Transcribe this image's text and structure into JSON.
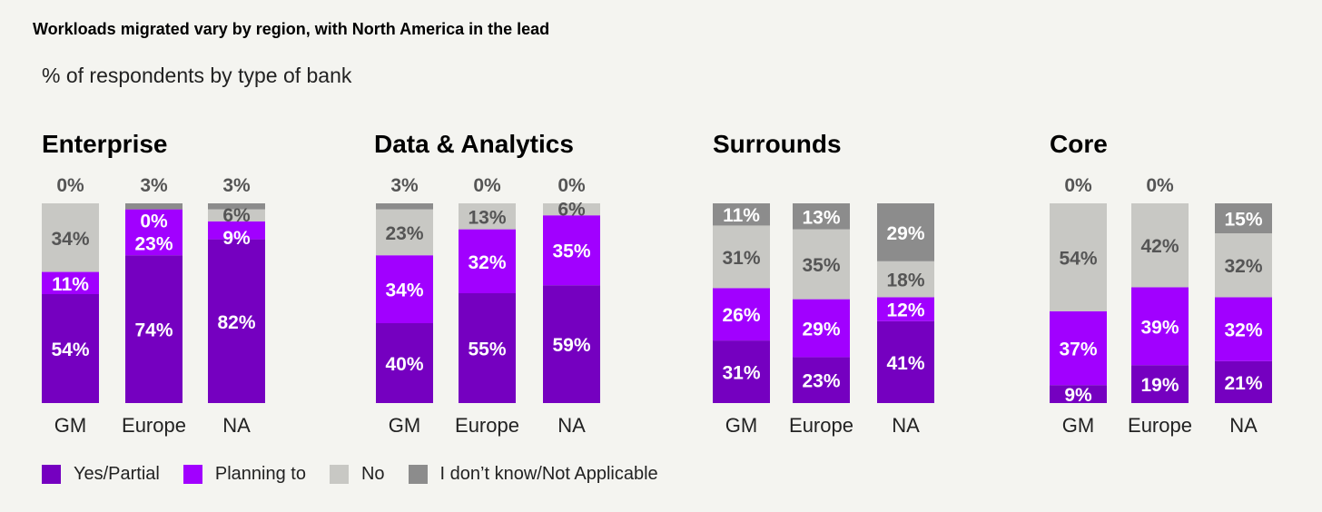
{
  "title": "Workloads migrated vary by region, with North America in the lead",
  "subtitle": "% of respondents by type of bank",
  "chart_data": {
    "type": "bar",
    "stacked": true,
    "title": "Workloads migrated vary by region, with North America in the lead",
    "subtitle": "% of respondents by type of bank",
    "legend_placement": "bottom-left",
    "series_names": [
      "Yes/Partial",
      "Planning to",
      "No",
      "I don’t know/Not Applicable"
    ],
    "colors": [
      "#7500c0",
      "#a100ff",
      "#c8c8c4",
      "#8c8c8c"
    ],
    "categories": [
      "GM",
      "Europe",
      "NA"
    ],
    "panels": [
      {
        "name": "Enterprise",
        "values": [
          [
            54,
            11,
            34,
            0
          ],
          [
            74,
            23,
            0,
            3
          ],
          [
            82,
            9,
            6,
            3
          ]
        ]
      },
      {
        "name": "Data & Analytics",
        "values": [
          [
            40,
            34,
            23,
            3
          ],
          [
            55,
            32,
            13,
            0
          ],
          [
            59,
            35,
            6,
            0
          ]
        ]
      },
      {
        "name": "Surrounds",
        "values": [
          [
            31,
            26,
            31,
            11
          ],
          [
            23,
            29,
            35,
            13
          ],
          [
            41,
            12,
            18,
            29
          ]
        ]
      },
      {
        "name": "Core",
        "values": [
          [
            9,
            37,
            54,
            0
          ],
          [
            19,
            39,
            42,
            0
          ],
          [
            21,
            32,
            32,
            15
          ]
        ]
      }
    ]
  }
}
